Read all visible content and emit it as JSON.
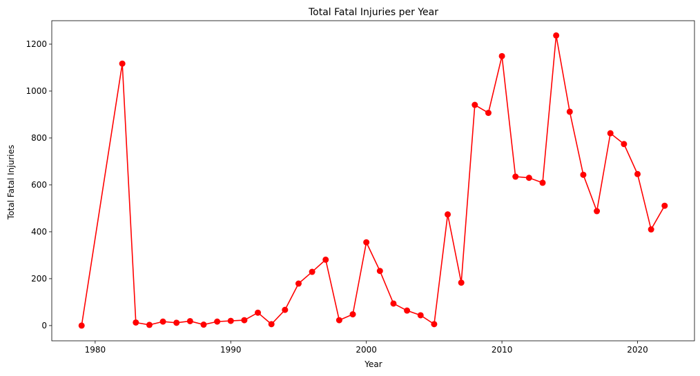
{
  "chart_data": {
    "type": "line",
    "title": "Total Fatal Injuries per Year",
    "xlabel": "Year",
    "ylabel": "Total Fatal Injuries",
    "xlim": [
      1976.8,
      2024.2
    ],
    "ylim": [
      -65,
      1300
    ],
    "xticks": [
      1980,
      1990,
      2000,
      2010,
      2020
    ],
    "yticks": [
      0,
      200,
      400,
      600,
      800,
      1000,
      1200
    ],
    "grid": false,
    "color": "#ff0000",
    "series": [
      {
        "x": [
          1979,
          1982,
          1983,
          1984,
          1985,
          1986,
          1987,
          1988,
          1989,
          1990,
          1991,
          1992,
          1993,
          1994,
          1995,
          1996,
          1997,
          1998,
          1999,
          2000,
          2001,
          2002,
          2003,
          2004,
          2005,
          2006,
          2007,
          2008,
          2009,
          2010,
          2011,
          2012,
          2013,
          2014,
          2015,
          2016,
          2017,
          2018,
          2019,
          2020,
          2021,
          2022
        ],
        "y": [
          0,
          1117,
          13,
          3,
          17,
          12,
          19,
          4,
          17,
          20,
          23,
          55,
          6,
          67,
          179,
          229,
          281,
          23,
          48,
          355,
          233,
          94,
          64,
          44,
          6,
          474,
          183,
          941,
          907,
          1149,
          635,
          630,
          609,
          1237,
          912,
          643,
          488,
          820,
          774,
          646,
          410,
          511
        ]
      }
    ]
  }
}
